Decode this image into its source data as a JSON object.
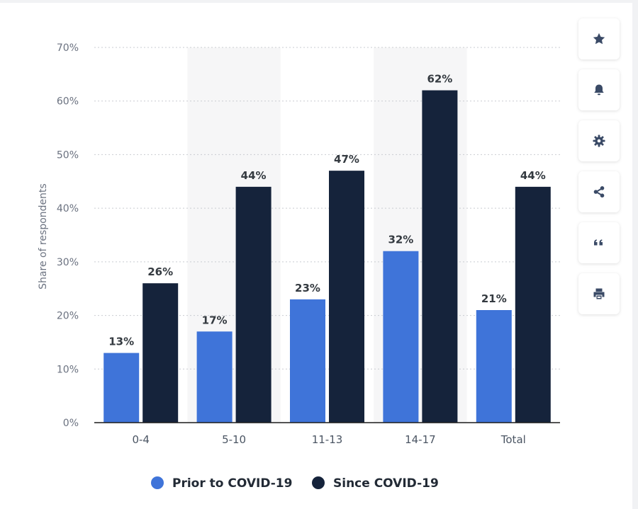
{
  "chart_data": {
    "type": "bar",
    "title": "",
    "xlabel": "",
    "ylabel": "Share of respondents",
    "ylim": [
      0,
      70
    ],
    "yticks": [
      "0%",
      "10%",
      "20%",
      "30%",
      "40%",
      "50%",
      "60%",
      "70%"
    ],
    "categories": [
      "0-4",
      "5-10",
      "11-13",
      "14-17",
      "Total"
    ],
    "series": [
      {
        "name": "Prior to COVID-19",
        "values": [
          13,
          17,
          23,
          32,
          21
        ],
        "labels": [
          "13%",
          "17%",
          "23%",
          "32%",
          "21%"
        ],
        "color": "#3f74d9"
      },
      {
        "name": "Since COVID-19",
        "values": [
          26,
          44,
          47,
          62,
          44
        ],
        "labels": [
          "26%",
          "44%",
          "47%",
          "62%",
          "44%"
        ],
        "color": "#15233b"
      }
    ],
    "grid": true,
    "legend_position": "bottom"
  },
  "toolbar": {
    "buttons": [
      "star-icon",
      "bell-icon",
      "gear-icon",
      "share-icon",
      "quote-icon",
      "print-icon"
    ],
    "icon_color": "#3a4a66"
  }
}
